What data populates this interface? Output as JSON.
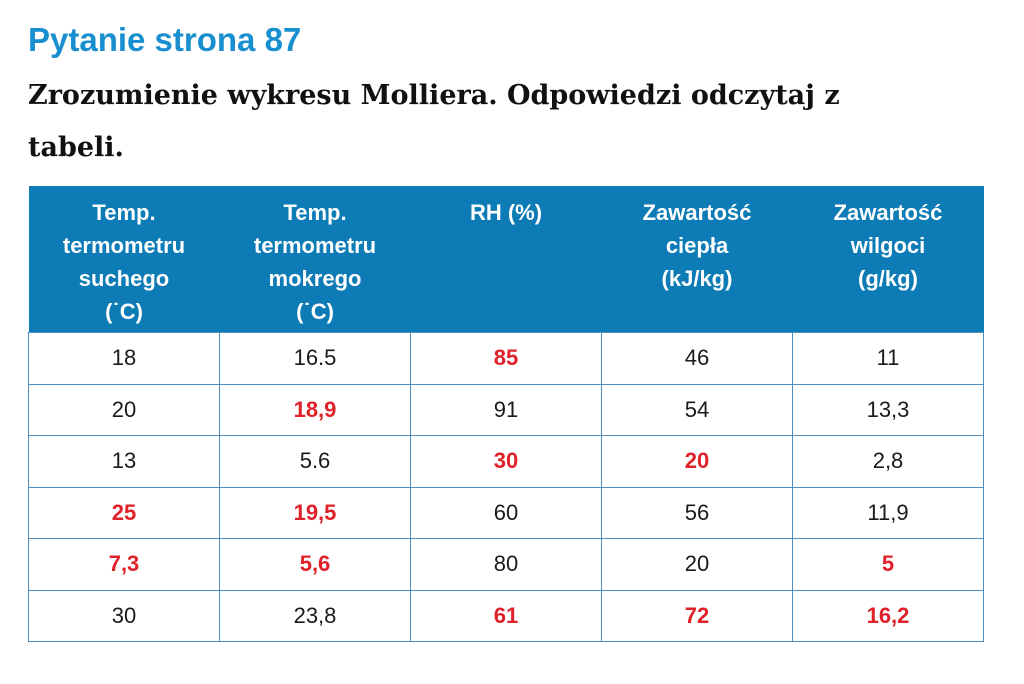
{
  "page": {
    "title": "Pytanie strona 87",
    "subtitle": "Zrozumienie wykresu Molliera. Odpowiedzi odczytaj z tabeli."
  },
  "table": {
    "headers": [
      [
        "Temp.",
        "termometru",
        "suchego",
        "(˙C)"
      ],
      [
        "Temp.",
        "termometru",
        "mokrego",
        "(˙C)"
      ],
      [
        "RH (%)"
      ],
      [
        "Zawartość",
        "ciepła",
        "(kJ/kg)"
      ],
      [
        "Zawartość",
        "wilgoci",
        "(g/kg)"
      ]
    ],
    "rows": [
      [
        {
          "value": "18",
          "answer": false
        },
        {
          "value": "16.5",
          "answer": false
        },
        {
          "value": "85",
          "answer": true
        },
        {
          "value": "46",
          "answer": false
        },
        {
          "value": "11",
          "answer": false
        }
      ],
      [
        {
          "value": "20",
          "answer": false
        },
        {
          "value": "18,9",
          "answer": true
        },
        {
          "value": "91",
          "answer": false
        },
        {
          "value": "54",
          "answer": false
        },
        {
          "value": "13,3",
          "answer": false
        }
      ],
      [
        {
          "value": "13",
          "answer": false
        },
        {
          "value": "5.6",
          "answer": false
        },
        {
          "value": "30",
          "answer": true
        },
        {
          "value": "20",
          "answer": true
        },
        {
          "value": "2,8",
          "answer": false
        }
      ],
      [
        {
          "value": "25",
          "answer": true
        },
        {
          "value": "19,5",
          "answer": true
        },
        {
          "value": "60",
          "answer": false
        },
        {
          "value": "56",
          "answer": false
        },
        {
          "value": "11,9",
          "answer": false
        }
      ],
      [
        {
          "value": "7,3",
          "answer": true
        },
        {
          "value": "5,6",
          "answer": true
        },
        {
          "value": "80",
          "answer": false
        },
        {
          "value": "20",
          "answer": false
        },
        {
          "value": "5",
          "answer": true
        }
      ],
      [
        {
          "value": "30",
          "answer": false
        },
        {
          "value": "23,8",
          "answer": false
        },
        {
          "value": "61",
          "answer": true
        },
        {
          "value": "72",
          "answer": true
        },
        {
          "value": "16,2",
          "answer": true
        }
      ]
    ]
  },
  "colors": {
    "title": "#1a8fd0",
    "header_background": "#0d7bb5",
    "answer_text": "#e0212a",
    "cell_border": "#4f8fbf"
  }
}
